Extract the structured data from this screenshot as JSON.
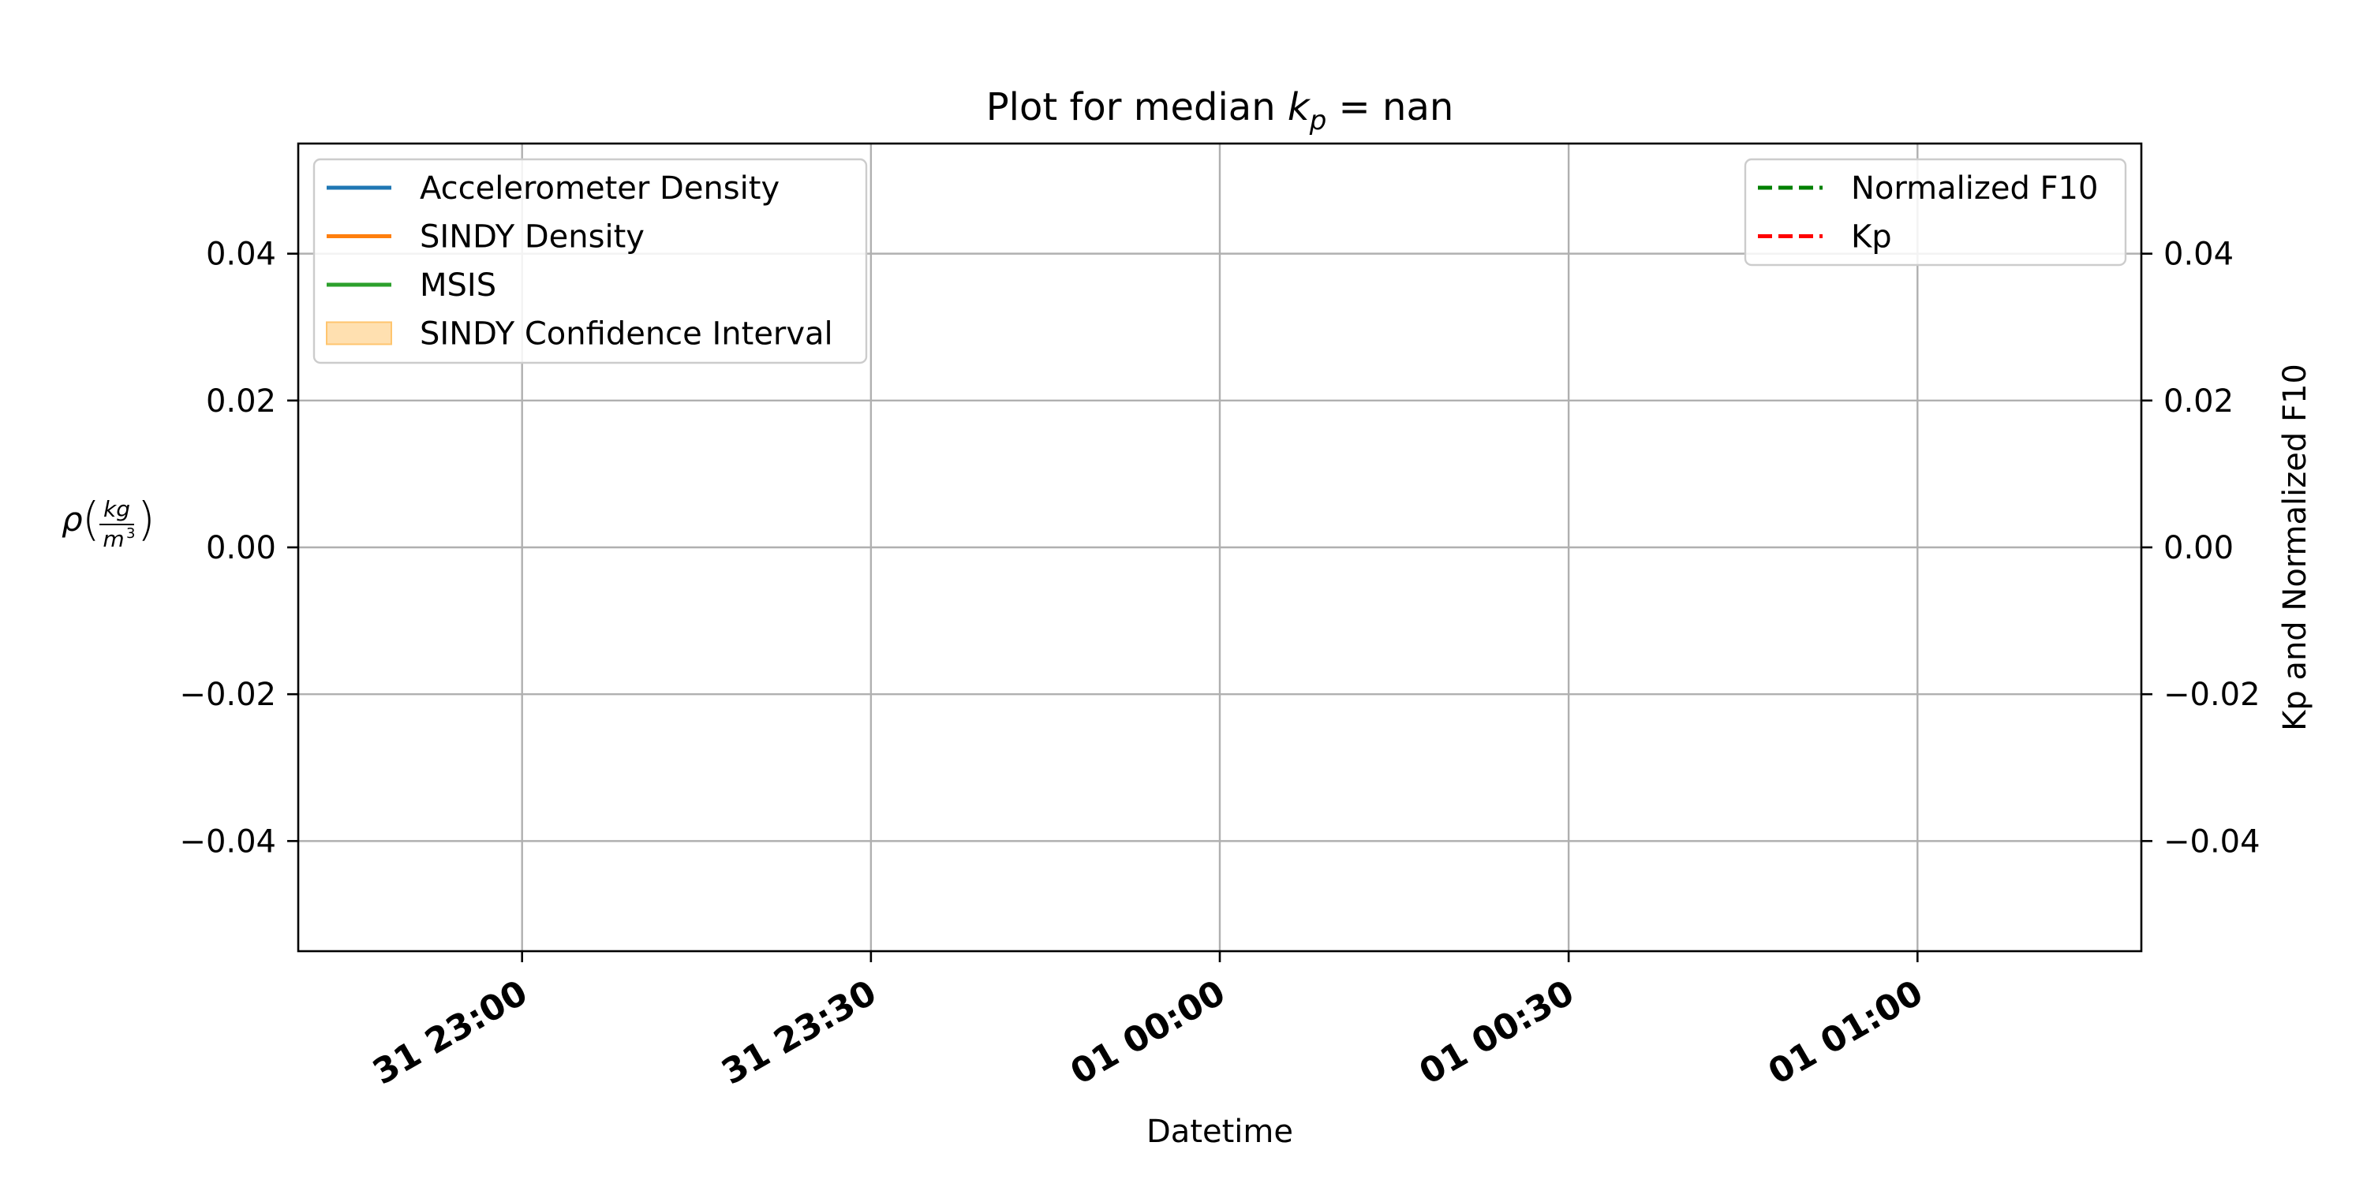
{
  "chart_data": {
    "type": "line",
    "title": "Plot for median k_p = nan",
    "title_parts": {
      "prefix": "Plot for median ",
      "var": "k",
      "sub": "p",
      "suffix": " = nan"
    },
    "xlabel": "Datetime",
    "ylabel_left": "ρ(kg/m³)",
    "ylabel_parts": {
      "rho": "ρ",
      "num": "kg",
      "den": "m",
      "den_exp": "3"
    },
    "ylabel_right": "Kp and Normalized F10",
    "x_ticks": [
      {
        "label": "31 23:00",
        "minutes": -60
      },
      {
        "label": "31 23:30",
        "minutes": -30
      },
      {
        "label": "01 00:00",
        "minutes": 0
      },
      {
        "label": "01 00:30",
        "minutes": 30
      },
      {
        "label": "01 01:00",
        "minutes": 60
      }
    ],
    "xlim_minutes": [
      -79.25,
      79.25
    ],
    "ylim_left": [
      -0.055,
      0.055
    ],
    "ylim_right": [
      -0.055,
      0.055
    ],
    "y_ticks_left": [
      {
        "value": 0.04,
        "label": "0.04"
      },
      {
        "value": 0.02,
        "label": "0.02"
      },
      {
        "value": 0.0,
        "label": "0.00"
      },
      {
        "value": -0.02,
        "label": "−0.02"
      },
      {
        "value": -0.04,
        "label": "−0.04"
      }
    ],
    "y_ticks_right": [
      {
        "value": 0.04,
        "label": "0.04"
      },
      {
        "value": 0.02,
        "label": "0.02"
      },
      {
        "value": 0.0,
        "label": "0.00"
      },
      {
        "value": -0.02,
        "label": "−0.02"
      },
      {
        "value": -0.04,
        "label": "−0.04"
      }
    ],
    "grid": true,
    "legend_left": {
      "placement": "top-left",
      "entries": [
        {
          "name": "Accelerometer Density",
          "kind": "line",
          "color": "#1f77b4"
        },
        {
          "name": "SINDY Density",
          "kind": "line",
          "color": "#ff7f0e"
        },
        {
          "name": "MSIS",
          "kind": "line",
          "color": "#2ca02c"
        },
        {
          "name": "SINDY Confidence Interval",
          "kind": "patch",
          "color": "#ffe0b0"
        }
      ]
    },
    "legend_right": {
      "placement": "top-right",
      "entries": [
        {
          "name": "Normalized F10",
          "kind": "dashed",
          "color": "#008000"
        },
        {
          "name": "Kp",
          "kind": "dashed",
          "color": "#ff0000"
        }
      ]
    },
    "series": []
  }
}
